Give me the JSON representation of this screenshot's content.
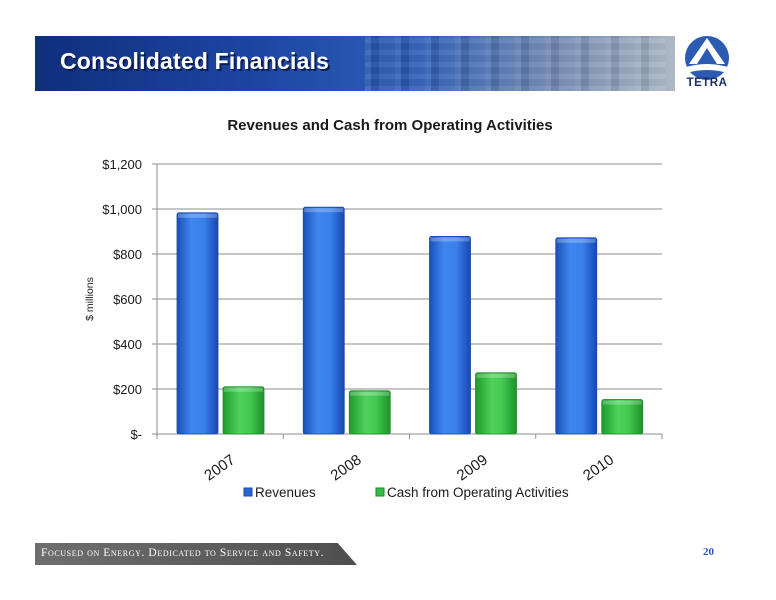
{
  "header": {
    "title": "Consolidated Financials",
    "logo_text": "TETRA"
  },
  "footer": {
    "tagline": "Focused on Energy. Dedicated to Service and Safety.",
    "page_number": "20"
  },
  "colors": {
    "revenues": "#1f5fd8",
    "cash": "#2fae3a",
    "banner": "#1d46a3"
  },
  "chart_data": {
    "type": "bar",
    "title": "Revenues and Cash from Operating Activities",
    "ylabel": "$ millions",
    "xlabel": "",
    "categories": [
      "2007",
      "2008",
      "2009",
      "2010"
    ],
    "series": [
      {
        "name": "Revenues",
        "values": [
          983,
          1008,
          878,
          872
        ]
      },
      {
        "name": "Cash from Operating Activities",
        "values": [
          210,
          192,
          272,
          153
        ]
      }
    ],
    "ylim": [
      0,
      1200
    ],
    "yticks": [
      0,
      200,
      400,
      600,
      800,
      1000,
      1200
    ],
    "ytick_labels": [
      "$-",
      "$200",
      "$400",
      "$600",
      "$800",
      "$1,000",
      "$1,200"
    ],
    "grid": true,
    "legend": "bottom"
  }
}
